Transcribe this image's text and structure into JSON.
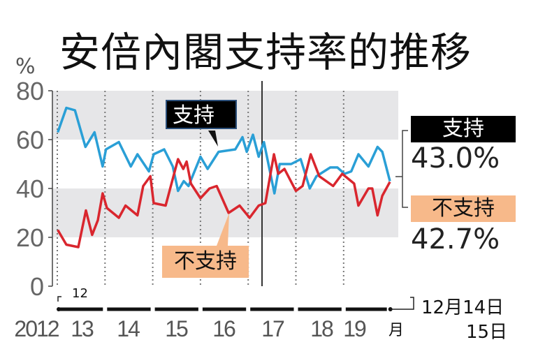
{
  "chart_data": {
    "type": "line",
    "title": "安倍內閣支持率的推移",
    "ylabel": "%",
    "ylim": [
      0,
      80
    ],
    "yticks": [
      "80",
      "60",
      "40",
      "20",
      "0"
    ],
    "ytick_values": [
      80,
      60,
      40,
      20,
      0
    ],
    "shaded_bands": [
      [
        60,
        80
      ],
      [
        20,
        40
      ]
    ],
    "xlim": [
      2012.95,
      2019.98
    ],
    "xtick_labels": [
      "2012",
      "13",
      "14",
      "15",
      "16",
      "17",
      "18",
      "19"
    ],
    "start_month_label": "12",
    "end_month_label": "月",
    "event_marker_x": 2017.29,
    "series": [
      {
        "name": "支持",
        "color": "#2a9fd6",
        "x": [
          2013.01,
          2013.19,
          2013.37,
          2013.59,
          2013.78,
          2013.95,
          2014.02,
          2014.29,
          2014.54,
          2014.68,
          2014.92,
          2015.02,
          2015.24,
          2015.42,
          2015.53,
          2015.65,
          2015.75,
          2016.0,
          2016.15,
          2016.38,
          2016.73,
          2016.88,
          2016.97,
          2017.1,
          2017.22,
          2017.33,
          2017.55,
          2017.66,
          2017.9,
          2018.1,
          2018.29,
          2018.43,
          2018.72,
          2018.87,
          2019.02,
          2019.16,
          2019.31,
          2019.52,
          2019.71,
          2019.81,
          2019.97
        ],
        "values": [
          63,
          73,
          72,
          57,
          63,
          49,
          56,
          59,
          49,
          54,
          47,
          54,
          56,
          49,
          39,
          43,
          41,
          53,
          48,
          55,
          56,
          61,
          55,
          62,
          53,
          59,
          38,
          50,
          50,
          52,
          40,
          45,
          48.6,
          48.6,
          46,
          47,
          54,
          49,
          57,
          55,
          43.0
        ]
      },
      {
        "name": "不支持",
        "color": "#d9262e",
        "x": [
          2013.01,
          2013.19,
          2013.44,
          2013.6,
          2013.73,
          2013.85,
          2013.95,
          2014.04,
          2014.29,
          2014.43,
          2014.68,
          2014.8,
          2014.95,
          2015.02,
          2015.27,
          2015.53,
          2015.64,
          2015.71,
          2015.8,
          2016.0,
          2016.19,
          2016.34,
          2016.59,
          2016.82,
          2017.03,
          2017.22,
          2017.36,
          2017.54,
          2017.63,
          2017.76,
          2018.0,
          2018.14,
          2018.31,
          2018.49,
          2018.78,
          2018.97,
          2019.22,
          2019.31,
          2019.52,
          2019.6,
          2019.71,
          2019.81,
          2019.97
        ],
        "values": [
          23,
          17,
          16,
          31,
          21,
          27,
          38,
          32,
          28,
          33,
          29,
          41,
          45,
          34,
          33,
          52,
          48,
          51,
          42,
          36,
          40,
          41,
          30,
          33,
          28,
          33,
          34,
          54,
          46,
          48,
          39,
          41,
          54,
          45,
          41,
          46,
          42,
          33,
          40,
          40,
          29,
          37,
          42.7
        ]
      }
    ],
    "callouts": {
      "support": "支持",
      "disapproval": "不支持"
    },
    "latest": {
      "support_label": "支持",
      "support_value": "43.0%",
      "disapproval_label": "不支持",
      "disapproval_value": "42.7%",
      "date_line1": "12月14日",
      "date_line2": "15日"
    }
  }
}
